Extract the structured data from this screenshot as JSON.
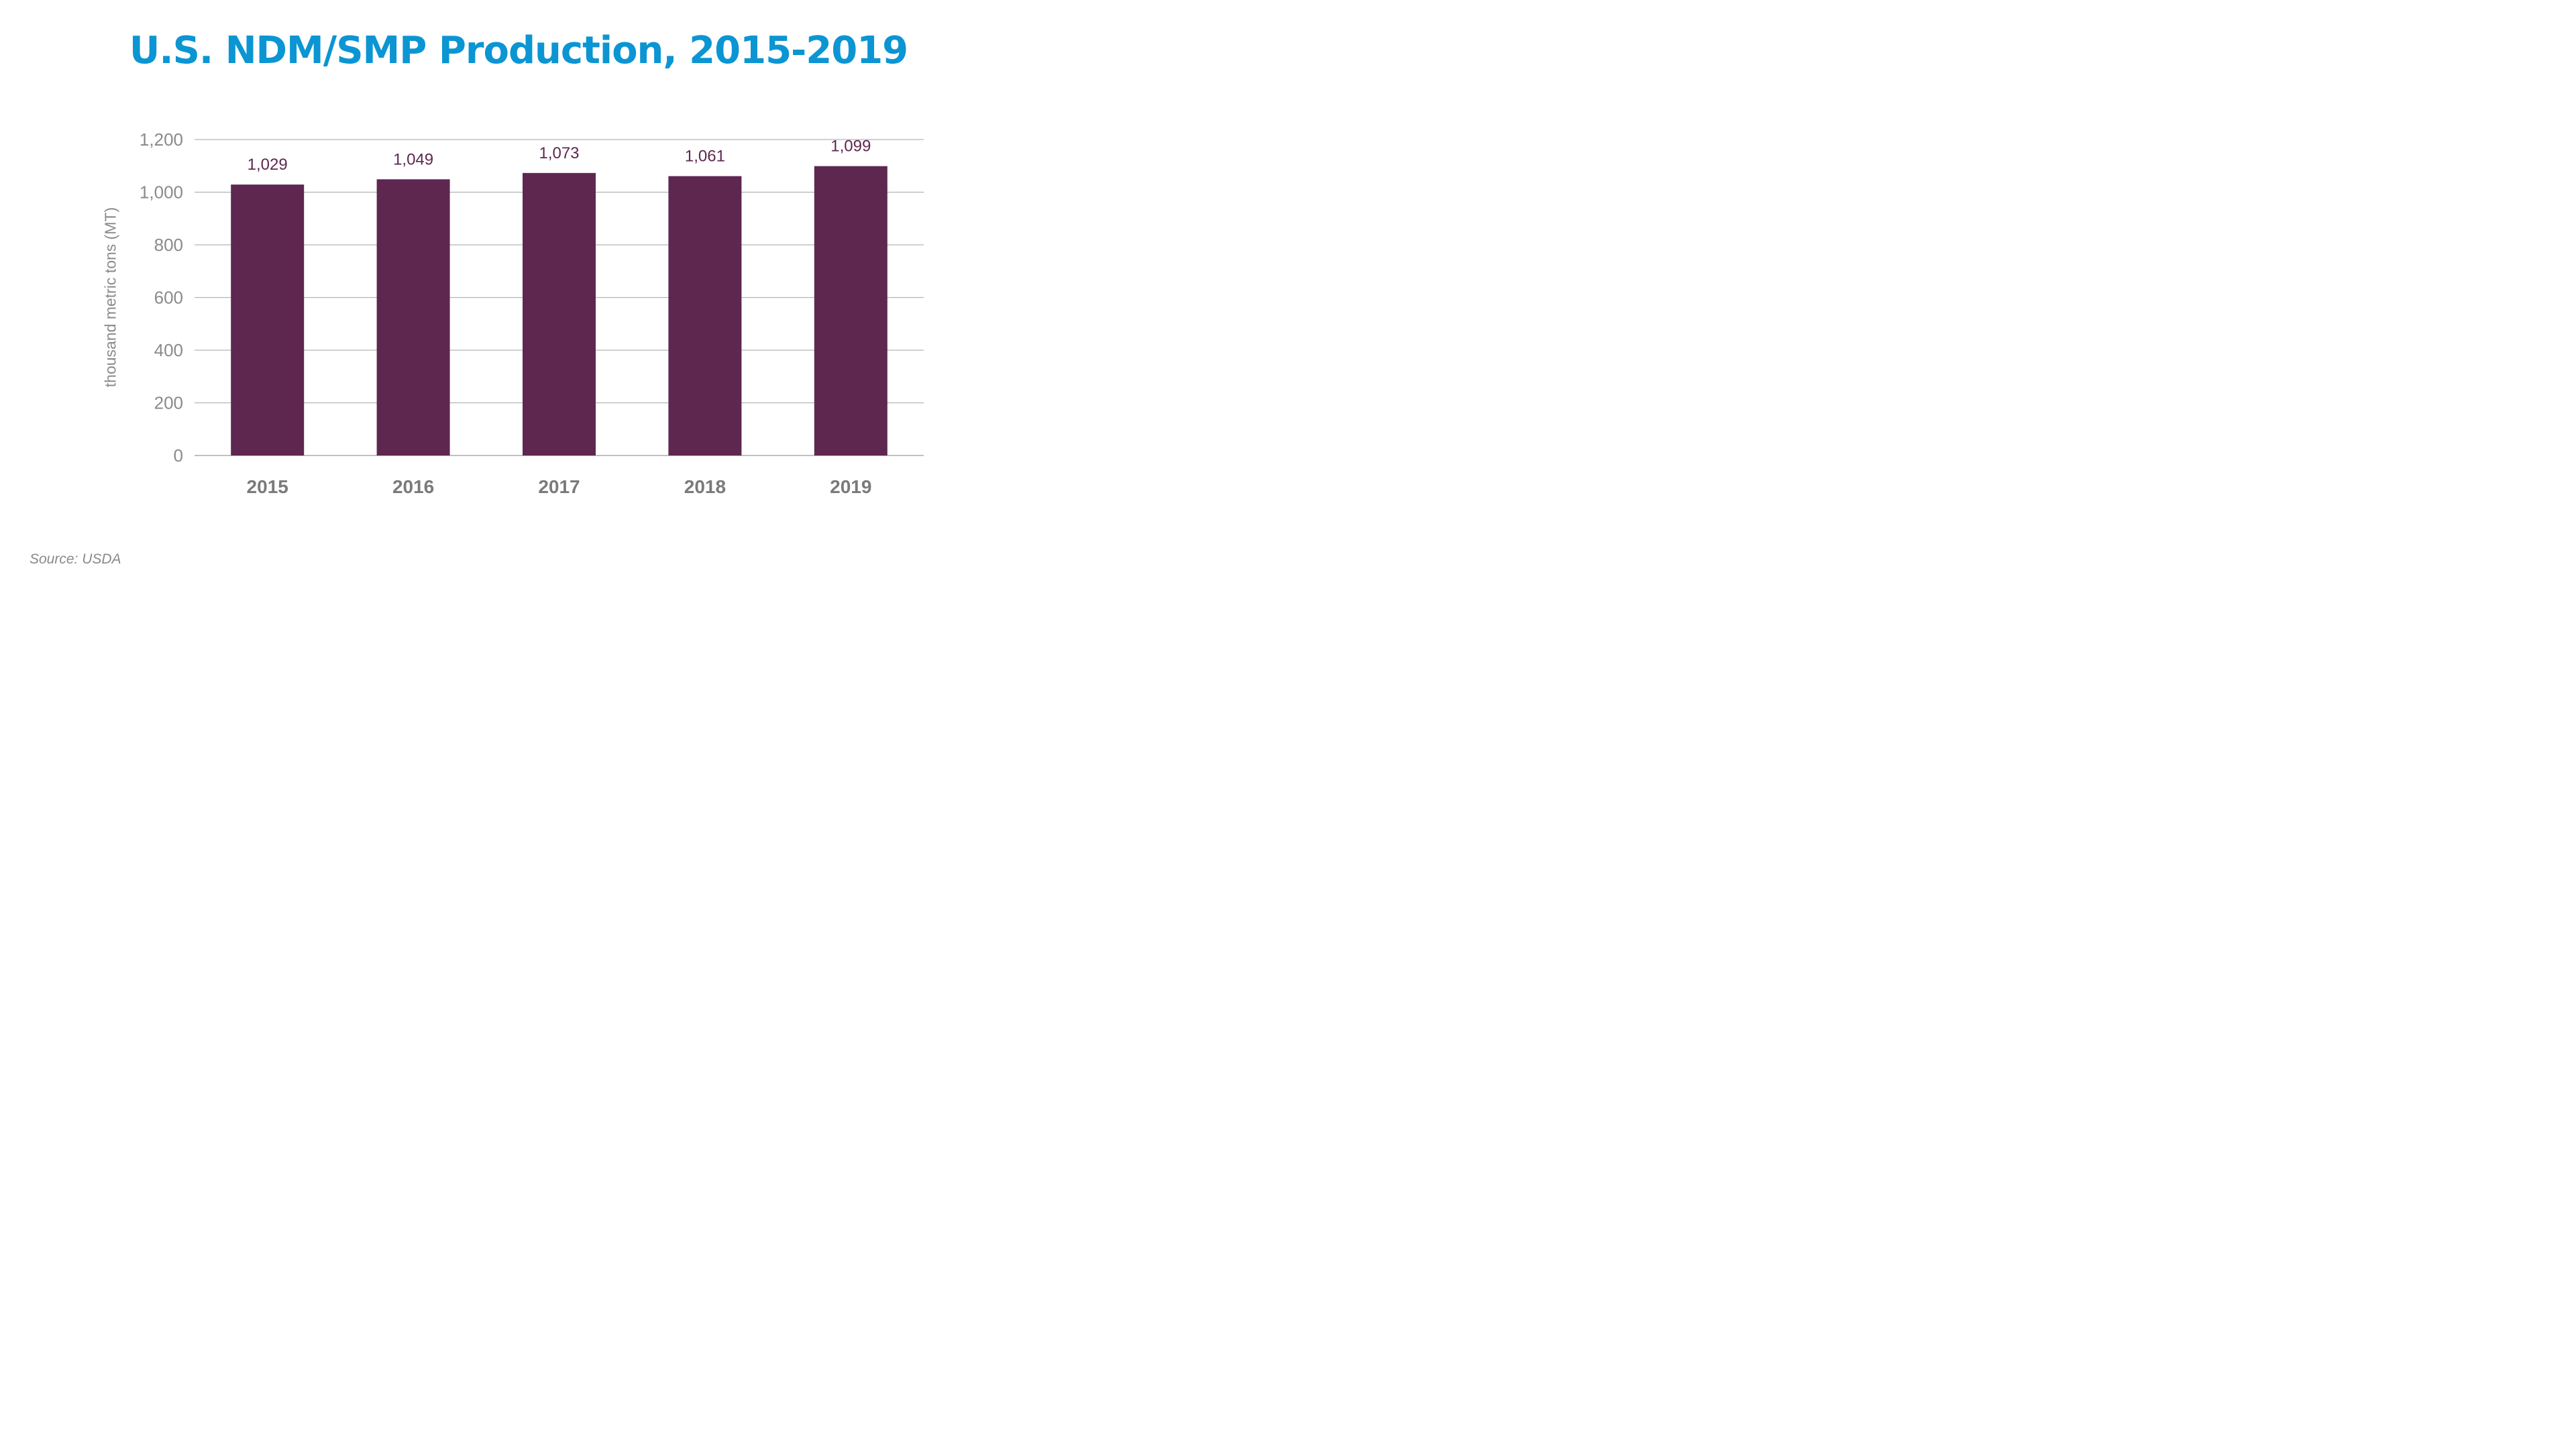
{
  "chart_data": {
    "type": "bar",
    "title": "U.S. NDM/SMP Production, 2015-2019",
    "ylabel": "thousand metric tons (MT)",
    "xlabel": "",
    "categories": [
      "2015",
      "2016",
      "2017",
      "2018",
      "2019"
    ],
    "values": [
      1029,
      1049,
      1073,
      1061,
      1099
    ],
    "data_labels": [
      "1,029",
      "1,049",
      "1,073",
      "1,061",
      "1,099"
    ],
    "ylim": [
      0,
      1200
    ],
    "y_ticks": [
      0,
      200,
      400,
      600,
      800,
      1000,
      1200
    ],
    "y_tick_labels": [
      "0",
      "200",
      "400",
      "600",
      "800",
      "1,000",
      "1,200"
    ],
    "grid": true,
    "legend": "none",
    "source": "Source: USDA",
    "colors": {
      "bar": "#5e2750",
      "title": "#0b95d3",
      "grid": "#b3b3b3",
      "axis_text": "#8a8a8a"
    }
  }
}
